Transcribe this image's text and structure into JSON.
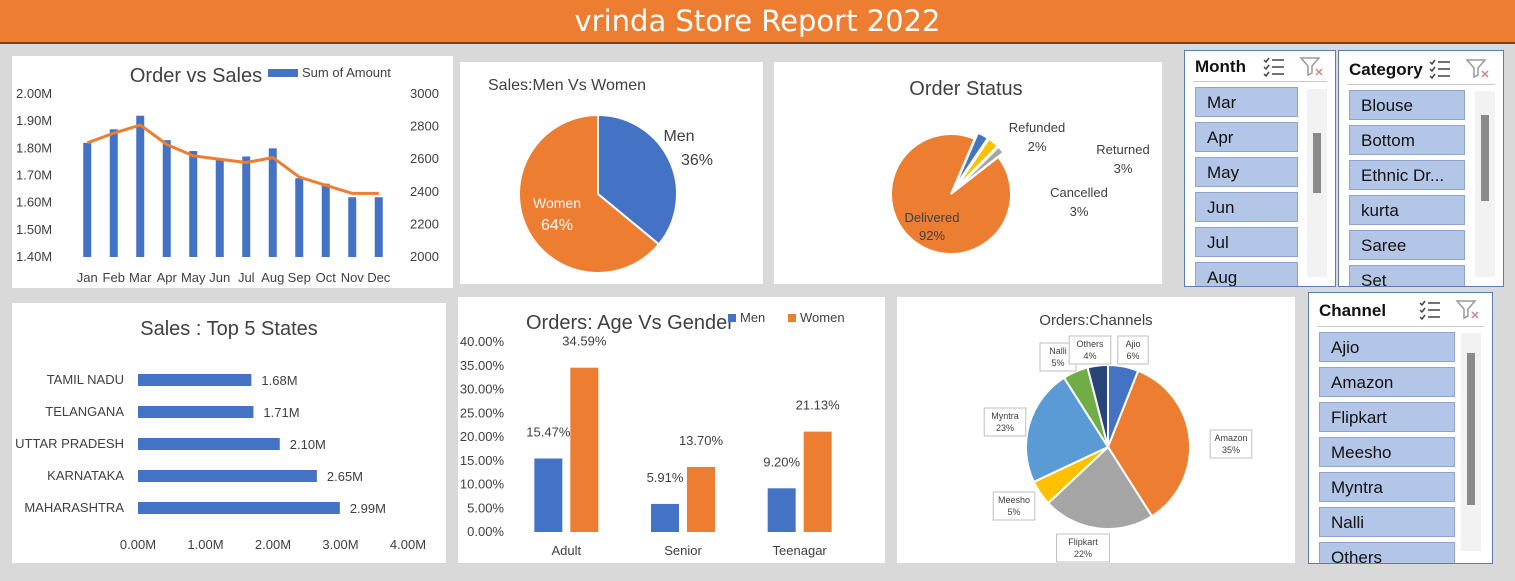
{
  "title": "vrinda Store Report 2022",
  "chart_data": [
    {
      "id": "order_vs_sales",
      "type": "bar",
      "title": "Order vs Sales",
      "categories": [
        "Jan",
        "Feb",
        "Mar",
        "Apr",
        "May",
        "Jun",
        "Jul",
        "Aug",
        "Sep",
        "Oct",
        "Nov",
        "Dec"
      ],
      "series": [
        {
          "name": "Sum of Amount",
          "type": "bar",
          "color": "#4472c4",
          "values": [
            1.82,
            1.87,
            1.92,
            1.83,
            1.79,
            1.76,
            1.77,
            1.8,
            1.69,
            1.67,
            1.62,
            1.62
          ]
        },
        {
          "type": "line",
          "axis": "secondary",
          "color": "#ed7d31",
          "values": [
            2700,
            2760,
            2810,
            2690,
            2620,
            2600,
            2580,
            2610,
            2490,
            2440,
            2390,
            2390
          ]
        }
      ],
      "y_ticks": [
        "2.00M",
        "1.90M",
        "1.80M",
        "1.70M",
        "1.60M",
        "1.50M",
        "1.40M"
      ],
      "ylim": [
        1.4,
        2.0
      ],
      "y2_ticks": [
        "3000",
        "2800",
        "2600",
        "2400",
        "2200",
        "2000"
      ],
      "y2lim": [
        2000,
        3000
      ],
      "legend": "top"
    },
    {
      "id": "sales_men_women",
      "type": "pie",
      "title": "Sales:Men Vs Women",
      "slices": [
        {
          "label": "Men",
          "value": 36,
          "display": "36%",
          "color": "#4472c4"
        },
        {
          "label": "Women",
          "value": 64,
          "display": "64%",
          "color": "#ed7d31"
        }
      ]
    },
    {
      "id": "order_status",
      "type": "pie",
      "title": "Order Status",
      "slices": [
        {
          "label": "Delivered",
          "value": 92,
          "display": "92%",
          "color": "#ed7d31"
        },
        {
          "label": "Cancelled",
          "value": 3,
          "display": "3%",
          "color": "#4472c4"
        },
        {
          "label": "Returned",
          "value": 3,
          "display": "3%",
          "color": "#ffc000"
        },
        {
          "label": "Refunded",
          "value": 2,
          "display": "2%",
          "color": "#a5a5a5"
        }
      ]
    },
    {
      "id": "top5_states",
      "type": "bar",
      "orientation": "horizontal",
      "title": "Sales : Top 5 States",
      "categories": [
        "TAMIL NADU",
        "TELANGANA",
        "UTTAR PRADESH",
        "KARNATAKA",
        "MAHARASHTRA"
      ],
      "values": [
        1.68,
        1.71,
        2.1,
        2.65,
        2.99
      ],
      "labels": [
        "1.68M",
        "1.71M",
        "2.10M",
        "2.65M",
        "2.99M"
      ],
      "x_ticks": [
        "0.00M",
        "1.00M",
        "2.00M",
        "3.00M",
        "4.00M"
      ],
      "xlim": [
        0,
        4
      ],
      "color": "#4472c4"
    },
    {
      "id": "age_vs_gender",
      "type": "bar",
      "title": "Orders: Age Vs Gender",
      "categories": [
        "Adult",
        "Senior",
        "Teenagar"
      ],
      "series": [
        {
          "name": "Men",
          "color": "#4472c4",
          "values": [
            15.47,
            5.91,
            9.2
          ],
          "labels": [
            "15.47%",
            "5.91%",
            "9.20%"
          ]
        },
        {
          "name": "Women",
          "color": "#ed7d31",
          "values": [
            34.59,
            13.7,
            21.13
          ],
          "labels": [
            "34.59%",
            "13.70%",
            "21.13%"
          ]
        }
      ],
      "y_ticks": [
        "40.00%",
        "35.00%",
        "30.00%",
        "25.00%",
        "20.00%",
        "15.00%",
        "10.00%",
        "5.00%",
        "0.00%"
      ],
      "ylim": [
        0,
        40
      ],
      "legend": "top"
    },
    {
      "id": "orders_channels",
      "type": "pie",
      "title": "Orders:Channels",
      "slices": [
        {
          "label": "Ajio",
          "value": 6,
          "display": "6%",
          "color": "#4472c4"
        },
        {
          "label": "Amazon",
          "value": 35,
          "display": "35%",
          "color": "#ed7d31"
        },
        {
          "label": "Flipkart",
          "value": 22,
          "display": "22%",
          "color": "#a5a5a5"
        },
        {
          "label": "Meesho",
          "value": 5,
          "display": "5%",
          "color": "#ffc000"
        },
        {
          "label": "Myntra",
          "value": 23,
          "display": "23%",
          "color": "#5b9bd5"
        },
        {
          "label": "Nalli",
          "value": 5,
          "display": "5%",
          "color": "#70ad47"
        },
        {
          "label": "Others",
          "value": 4,
          "display": "4%",
          "color": "#264478"
        }
      ]
    }
  ],
  "slicers": {
    "month": {
      "header": "Month",
      "items": [
        "Mar",
        "Apr",
        "May",
        "Jun",
        "Jul",
        "Aug"
      ]
    },
    "category": {
      "header": "Category",
      "items": [
        "Blouse",
        "Bottom",
        "Ethnic Dr...",
        "kurta",
        "Saree",
        "Set"
      ]
    },
    "channel": {
      "header": "Channel",
      "items": [
        "Ajio",
        "Amazon",
        "Flipkart",
        "Meesho",
        "Myntra",
        "Nalli",
        "Others"
      ]
    }
  }
}
